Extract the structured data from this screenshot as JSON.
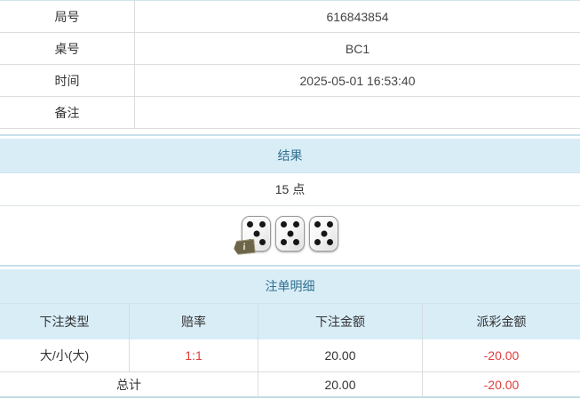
{
  "info_table": {
    "rows": [
      {
        "label": "局号",
        "value": "616843854"
      },
      {
        "label": "桌号",
        "value": "BC1"
      },
      {
        "label": "时间",
        "value": "2025-05-01 16:53:40"
      },
      {
        "label": "备注",
        "value": ""
      }
    ]
  },
  "result_section": {
    "header": "结果",
    "total_points": "15 点",
    "dice": [
      5,
      5,
      5
    ],
    "info_icon_glyph": "i"
  },
  "bet_section": {
    "header": "注单明细",
    "columns": [
      "下注类型",
      "赔率",
      "下注金额",
      "派彩金额"
    ],
    "rows": [
      {
        "bet_type": "大/小(大)",
        "odds": "1:1",
        "bet_amount": "20.00",
        "payout": "-20.00"
      }
    ],
    "total": {
      "label": "总计",
      "bet_amount": "20.00",
      "payout": "-20.00"
    }
  },
  "colors": {
    "band_bg": "#d9edf7",
    "band_text": "#31708f",
    "accent_red": "#e23b3b",
    "border_teal": "#c7e0ec",
    "border_gray": "#dddddd",
    "text": "#333333"
  }
}
